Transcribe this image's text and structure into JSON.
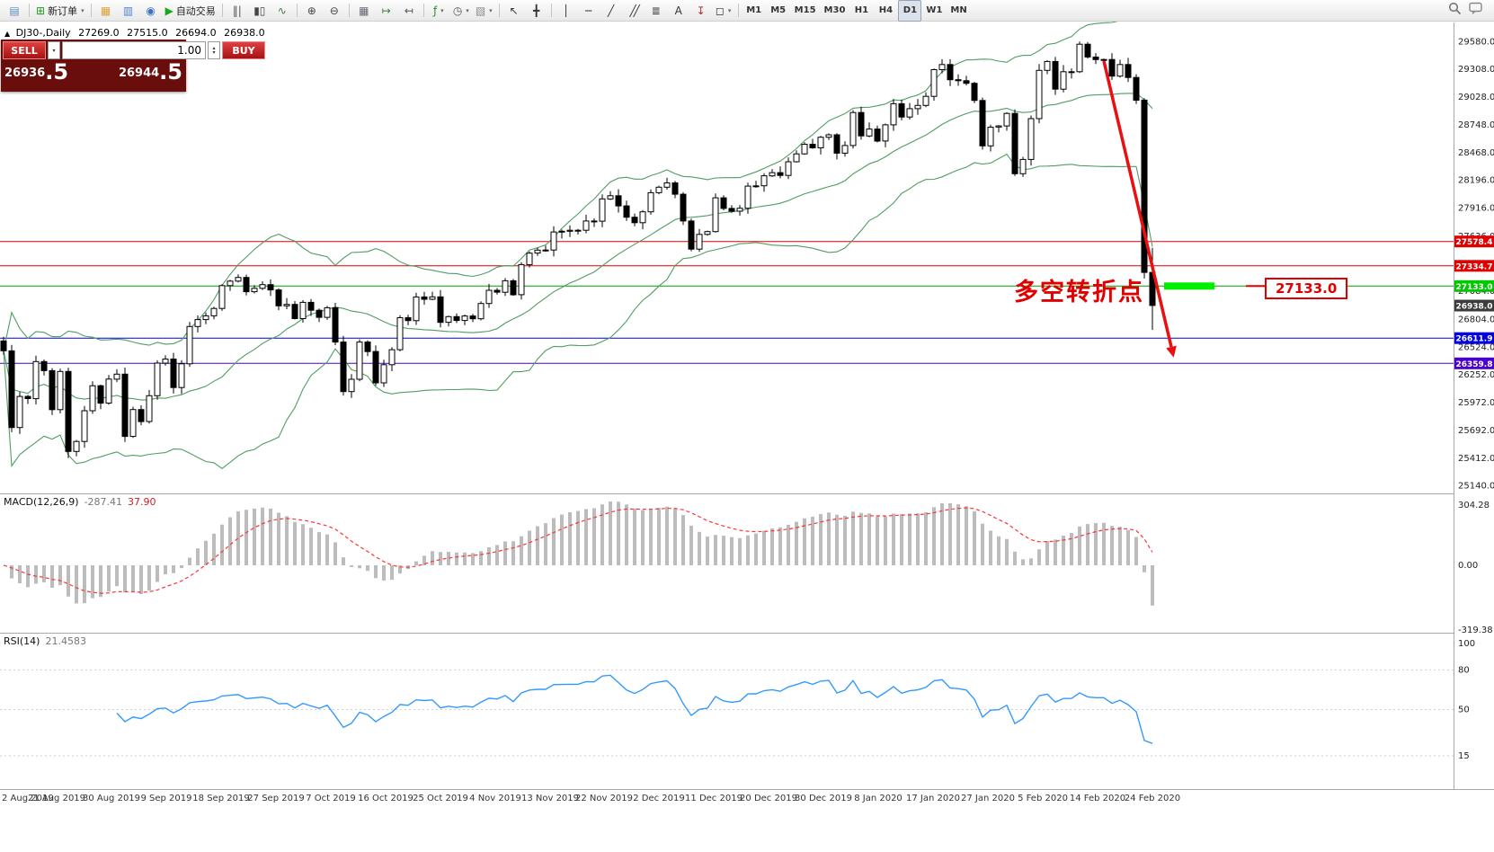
{
  "toolbar": {
    "active_timeframe": "D1",
    "items": [
      {
        "name": "charts-tile-icon",
        "glyph": "▤",
        "color": "#5f87c0"
      },
      {
        "sep": true
      },
      {
        "name": "new-order-button",
        "glyph": "⊞",
        "color": "#1f9d1f",
        "label": "新订单",
        "dropdown": true
      },
      {
        "sep": true
      },
      {
        "name": "market-watch-icon",
        "glyph": "▦",
        "color": "#d9a43b"
      },
      {
        "name": "data-window-icon",
        "glyph": "▥",
        "color": "#4a7fd9"
      },
      {
        "name": "help-icon",
        "glyph": "◉",
        "color": "#3f6fc5"
      },
      {
        "name": "autotrading-button",
        "glyph": "▶",
        "color": "#18a818",
        "label": "自动交易"
      },
      {
        "sep": true
      },
      {
        "name": "bar-chart-icon",
        "glyph": "‖|",
        "color": "#555"
      },
      {
        "name": "candlestick-chart-icon",
        "glyph": "▮▯",
        "color": "#444"
      },
      {
        "name": "line-chart-icon",
        "glyph": "∿",
        "color": "#447744"
      },
      {
        "sep": true
      },
      {
        "name": "zoom-in-icon",
        "glyph": "⊕",
        "color": "#444"
      },
      {
        "name": "zoom-out-icon",
        "glyph": "⊖",
        "color": "#444"
      },
      {
        "sep": true
      },
      {
        "name": "tile-windows-icon",
        "glyph": "▦",
        "color": "#667"
      },
      {
        "name": "auto-scroll-icon",
        "glyph": "↦",
        "color": "#3a7d3a"
      },
      {
        "name": "chart-shift-icon",
        "glyph": "↤",
        "color": "#555"
      },
      {
        "sep": true
      },
      {
        "name": "indicators-button",
        "glyph": "ƒ",
        "color": "#2d8a2d",
        "dropdown": true
      },
      {
        "name": "periods-button",
        "glyph": "◷",
        "color": "#555",
        "dropdown": true
      },
      {
        "name": "templates-button",
        "glyph": "▧",
        "color": "#888",
        "dropdown": true
      },
      {
        "sep": true
      },
      {
        "name": "cursor-icon",
        "glyph": "↖",
        "color": "#333"
      },
      {
        "name": "crosshair-icon",
        "glyph": "╋",
        "color": "#333"
      },
      {
        "sep": true
      },
      {
        "name": "vertical-line-icon",
        "glyph": "│",
        "color": "#333"
      },
      {
        "name": "horizontal-line-icon",
        "glyph": "─",
        "color": "#333"
      },
      {
        "name": "trendline-icon",
        "glyph": "╱",
        "color": "#333"
      },
      {
        "name": "channel-icon",
        "glyph": "╱╱",
        "color": "#333",
        "tight": true
      },
      {
        "name": "fibonacci-icon",
        "glyph": "≣",
        "color": "#333"
      },
      {
        "name": "text-label-icon",
        "glyph": "A",
        "color": "#333"
      },
      {
        "name": "arrows-icon",
        "glyph": "↧",
        "color": "#a33"
      },
      {
        "name": "shapes-button",
        "glyph": "◻",
        "color": "#333",
        "dropdown": true
      },
      {
        "sep": true
      },
      {
        "name": "timeframe-m1",
        "tf": true,
        "label": "M1"
      },
      {
        "name": "timeframe-m5",
        "tf": true,
        "label": "M5"
      },
      {
        "name": "timeframe-m15",
        "tf": true,
        "label": "M15"
      },
      {
        "name": "timeframe-m30",
        "tf": true,
        "label": "M30"
      },
      {
        "name": "timeframe-h1",
        "tf": true,
        "label": "H1"
      },
      {
        "name": "timeframe-h4",
        "tf": true,
        "label": "H4"
      },
      {
        "name": "timeframe-d1",
        "tf": true,
        "label": "D1"
      },
      {
        "name": "timeframe-w1",
        "tf": true,
        "label": "W1"
      },
      {
        "name": "timeframe-mn",
        "tf": true,
        "label": "MN"
      }
    ]
  },
  "order_panel": {
    "sell_label": "SELL",
    "buy_label": "BUY",
    "volume": "1.00",
    "spin_up": "▴",
    "spin_down": "▾",
    "sell_price": "26936.5",
    "buy_price": "26944.5"
  },
  "chart_info": {
    "icon": "▲",
    "symbol": "DJ30-,Daily",
    "open": "27269.0",
    "high": "27515.0",
    "low": "26694.0",
    "close": "26938.0"
  },
  "indicators": {
    "macd_label": "MACD(12,26,9)",
    "macd_value": "-287.41",
    "macd_signal": "37.90",
    "rsi_label": "RSI(14)",
    "rsi_value": "21.4583"
  },
  "annotation": {
    "text": "多空转折点",
    "callout": "27133.0"
  },
  "chart_data": {
    "type": "candlestick",
    "symbol": "DJ30",
    "timeframe": "Daily",
    "price_axis_labels": [
      "29580.0",
      "29308.0",
      "29028.0",
      "28748.0",
      "28468.0",
      "28196.0",
      "27916.0",
      "27636.0",
      "27356.0",
      "27084.0",
      "26804.0",
      "26524.0",
      "26252.0",
      "25972.0",
      "25692.0",
      "25412.0",
      "25140.0"
    ],
    "macd_axis_labels": [
      "304.28",
      "0.00",
      "-319.38"
    ],
    "rsi_axis_labels": [
      "100",
      "80",
      "50",
      "15"
    ],
    "rsi_levels": [
      80,
      50,
      15
    ],
    "date_labels": [
      "2 Aug 2019",
      "21 Aug 2019",
      "30 Aug 2019",
      "9 Sep 2019",
      "18 Sep 2019",
      "27 Sep 2019",
      "7 Oct 2019",
      "16 Oct 2019",
      "25 Oct 2019",
      "4 Nov 2019",
      "13 Nov 2019",
      "22 Nov 2019",
      "2 Dec 2019",
      "11 Dec 2019",
      "20 Dec 2019",
      "30 Dec 2019",
      "8 Jan 2020",
      "17 Jan 2020",
      "27 Jan 2020",
      "5 Feb 2020",
      "14 Feb 2020",
      "24 Feb 2020"
    ],
    "current_price": "26938.0",
    "hlines": [
      {
        "value": 27578.4,
        "label": "27578.4",
        "color": "#e00000",
        "tag": "#e00000"
      },
      {
        "value": 27334.7,
        "label": "27334.7",
        "color": "#e00000",
        "tag": "#e00000"
      },
      {
        "value": 27133.0,
        "label": "27133.0",
        "color": "#00a000",
        "tag": "#00c800"
      },
      {
        "value": 26611.9,
        "label": "26611.9",
        "color": "#0000e0",
        "tag": "#0000e0"
      },
      {
        "value": 26359.8,
        "label": "26359.8",
        "color": "#4a00cc",
        "tag": "#4a00cc"
      }
    ],
    "highlight_segment": {
      "value": 27133.0,
      "color": "#00ee00"
    },
    "arrow": {
      "color": "#e81010"
    },
    "bollinger": {
      "period": 20,
      "deviation": 2,
      "color": "#4f9e62"
    },
    "macd": {
      "fast": 12,
      "slow": 26,
      "signal": 9,
      "hist_color": "#bcbcbc",
      "signal_color": "#ff3333"
    },
    "rsi": {
      "period": 14,
      "color": "#3399ff"
    },
    "candles": {
      "first_open": 26583,
      "closes": [
        26485,
        25718,
        26029,
        26007,
        26378,
        26287,
        25897,
        26279,
        25479,
        25579,
        25886,
        26136,
        25962,
        26202,
        26252,
        25629,
        25898,
        25778,
        26036,
        26362,
        26403,
        26118,
        26355,
        26728,
        26797,
        26835,
        26909,
        27137,
        27182,
        27219,
        27076,
        27110,
        27147,
        27094,
        26935,
        26949,
        26807,
        26970,
        26891,
        26820,
        26916,
        26573,
        26078,
        26201,
        26573,
        26478,
        26164,
        26346,
        26496,
        26816,
        26787,
        27024,
        27001,
        27025,
        26770,
        26827,
        26788,
        26833,
        26805,
        26958,
        27090,
        27071,
        27186,
        27046,
        27347,
        27462,
        27492,
        27493,
        27674,
        27681,
        27691,
        27690,
        27783,
        27781,
        28004,
        28036,
        27934,
        27821,
        27766,
        27875,
        28066,
        28121,
        28164,
        28051,
        27783,
        27502,
        27649,
        27677,
        28015,
        27909,
        27881,
        27911,
        28132,
        28135,
        28235,
        28267,
        28239,
        28376,
        28455,
        28551,
        28515,
        28621,
        28645,
        28462,
        28538,
        28868,
        28634,
        28703,
        28583,
        28745,
        28956,
        28823,
        28907,
        28939,
        29030,
        29297,
        29348,
        29196,
        29186,
        29160,
        28989,
        28535,
        28722,
        28734,
        28859,
        28256,
        28399,
        28807,
        29290,
        29379,
        29102,
        29276,
        29276,
        29551,
        29423,
        29398,
        29398,
        29232,
        29348,
        29219,
        28992,
        27269,
        26938
      ],
      "last": {
        "open": 27269,
        "high": 27515,
        "low": 26694,
        "close": 26938
      }
    }
  }
}
